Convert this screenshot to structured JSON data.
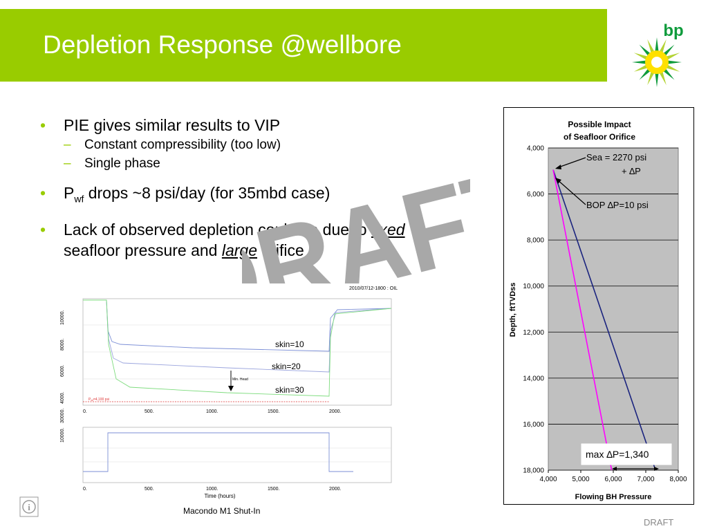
{
  "slide": {
    "title": "Depletion Response @wellbore",
    "logo_text": "bp",
    "draft_watermark": "DRAFT",
    "footer_draft": "DRAFT",
    "caption": "Macondo M1 Shut-In",
    "colors": {
      "title_bar": "#99cc00",
      "bullet": "#99cc00",
      "bp_green": "#0f9b3c",
      "bp_yellow": "#ffe000"
    },
    "icons": [
      "bp-helios-logo-icon",
      "info-icon"
    ]
  },
  "bullets": [
    {
      "text": "PIE gives similar results to VIP",
      "subs": [
        "Constant compressibility (too low)",
        "Single phase"
      ]
    },
    {
      "prefix": "P",
      "subscript": "wf",
      "text": " drops ~8 psi/day (for 35mbd case)",
      "subs": []
    },
    {
      "text_a": "Lack of observed depletion could be due to ",
      "em1": "fixed",
      "text_b": " seafloor pressure and ",
      "em2": "large",
      "text_c": " orifice",
      "subs": []
    }
  ],
  "sim_plot": {
    "header": "2010/07/12-1800 : OIL",
    "top_y_ticks": [
      "4000.",
      "6000.",
      "8000.",
      "10000."
    ],
    "bottom_y_ticks": [
      "10000.",
      "30000."
    ],
    "x_ticks": [
      "0.",
      "500.",
      "1000.",
      "1500.",
      "2000."
    ],
    "xlabel": "Time (hours)",
    "labels": [
      "skin=10",
      "skin=20",
      "skin=30"
    ],
    "arrow_label": "Min. Head",
    "limit_label": "P",
    "limit_sub": "wf",
    "limit_value": "=4,100 psi"
  },
  "chart_data": {
    "type": "line",
    "title": "Possible Impact of Seafloor Orifice",
    "title_lines": [
      "Possible Impact",
      "of Seafloor Orifice"
    ],
    "xlabel": "Flowing BH Pressure",
    "ylabel": "Depth, ftTVDss",
    "xlim": [
      4000,
      8000
    ],
    "ylim": [
      4000,
      18000
    ],
    "y_inverted": true,
    "grid": "horizontal",
    "x_ticks": [
      "4,000",
      "5,000",
      "6,000",
      "7,000",
      "8,000"
    ],
    "y_ticks": [
      "4,000",
      "6,000",
      "8,000",
      "10,000",
      "12,000",
      "14,000",
      "16,000",
      "18,000"
    ],
    "x_tick_values": [
      4000,
      5000,
      6000,
      7000,
      8000
    ],
    "y_tick_values": [
      4000,
      6000,
      8000,
      10000,
      12000,
      14000,
      16000,
      18000
    ],
    "series": [
      {
        "color": "#1a237e",
        "points": [
          [
            4150,
            4950
          ],
          [
            7300,
            18000
          ]
        ]
      },
      {
        "color": "#ff00ff",
        "points": [
          [
            4150,
            4950
          ],
          [
            5950,
            18000
          ]
        ]
      }
    ],
    "annotations": [
      {
        "text": "Sea = 2270 psi",
        "text2": "+ ∆P"
      },
      {
        "text": "BOP ∆P=10 psi"
      },
      {
        "text": "max ∆P=1,340"
      }
    ]
  }
}
